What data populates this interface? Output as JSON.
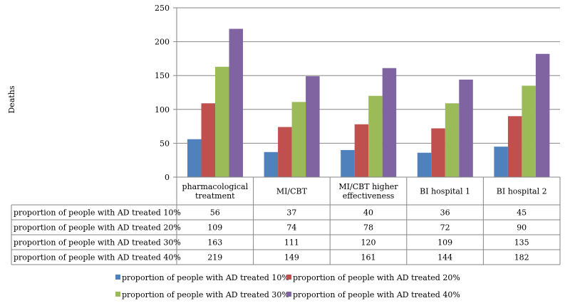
{
  "chart_data": {
    "type": "bar",
    "title": "",
    "xlabel": "",
    "ylabel": "Deaths",
    "ylim": [
      0,
      250
    ],
    "yticks": [
      0,
      50,
      100,
      150,
      200,
      250
    ],
    "grid": true,
    "legend": "bottom",
    "categories": [
      [
        "pharmacological",
        "treatment"
      ],
      [
        "MI/CBT"
      ],
      [
        "MI/CBT higher",
        "effectiveness"
      ],
      [
        "BI hospital 1"
      ],
      [
        "BI hospital 2"
      ]
    ],
    "series": [
      {
        "name": "proportion of people with AD treated 10%",
        "color": "#4f81bd",
        "values": [
          56,
          37,
          40,
          36,
          45
        ]
      },
      {
        "name": "proportion of people with AD treated 20%",
        "color": "#c0504d",
        "values": [
          109,
          74,
          78,
          72,
          90
        ]
      },
      {
        "name": "proportion of people with AD treated 30%",
        "color": "#9bbb59",
        "values": [
          163,
          111,
          120,
          109,
          135
        ]
      },
      {
        "name": "proportion of people with AD treated 40%",
        "color": "#8064a2",
        "values": [
          219,
          149,
          161,
          144,
          182
        ]
      }
    ]
  }
}
